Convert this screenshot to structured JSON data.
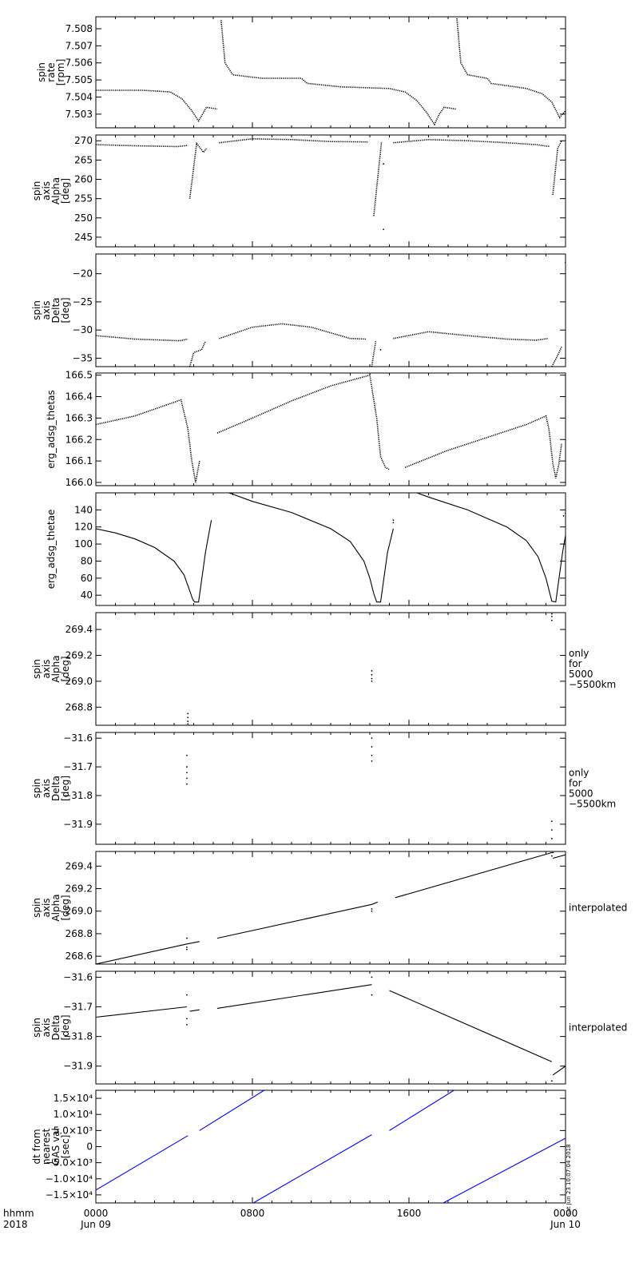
{
  "x_axis": {
    "label_line1": "hhmm",
    "label_line2": "2018",
    "ticks": [
      {
        "value": 0,
        "line1": "0000",
        "line2": "Jun 09"
      },
      {
        "value": 8,
        "line1": "0800",
        "line2": ""
      },
      {
        "value": 16,
        "line1": "1600",
        "line2": ""
      },
      {
        "value": 24,
        "line1": "0000",
        "line2": "Jun 10"
      }
    ],
    "range_hours": [
      0,
      24
    ]
  },
  "stamp": "Sat Jun 23 10:07:04 2018",
  "chart_data": [
    {
      "id": "spin-rate",
      "type": "scatter",
      "ylabel": [
        "spin",
        "rate",
        "[rpm]"
      ],
      "side_label": [],
      "ylim": [
        7.5022,
        7.5087
      ],
      "yticks": [
        7.503,
        7.504,
        7.505,
        7.506,
        7.507,
        7.508
      ],
      "ytick_labels": [
        "7.503",
        "7.504",
        "7.505",
        "7.506",
        "7.507",
        "7.508"
      ],
      "color": "#000000",
      "segments": [
        [
          [
            0,
            7.5044
          ],
          [
            2.4,
            7.5044
          ],
          [
            3.8,
            7.5043
          ],
          [
            4.4,
            7.5039
          ],
          [
            4.9,
            7.5032
          ],
          [
            5.25,
            7.5026
          ],
          [
            5.5,
            7.5031
          ],
          [
            5.65,
            7.5034
          ],
          [
            6.2,
            7.5033
          ]
        ],
        [
          [
            6.4,
            7.5085
          ],
          [
            6.6,
            7.506
          ],
          [
            7.0,
            7.5053
          ],
          [
            8.5,
            7.5051
          ],
          [
            10.5,
            7.5051
          ],
          [
            10.8,
            7.5048
          ],
          [
            12.5,
            7.5046
          ],
          [
            15.0,
            7.5045
          ],
          [
            15.8,
            7.5043
          ],
          [
            16.4,
            7.5038
          ],
          [
            16.9,
            7.5031
          ],
          [
            17.3,
            7.5024
          ],
          [
            17.55,
            7.503
          ],
          [
            17.8,
            7.5034
          ],
          [
            18.4,
            7.5033
          ]
        ],
        [
          [
            18.45,
            7.5086
          ],
          [
            18.65,
            7.506
          ],
          [
            19.0,
            7.5053
          ],
          [
            20.0,
            7.5051
          ],
          [
            20.2,
            7.5048
          ],
          [
            22.0,
            7.5045
          ],
          [
            22.8,
            7.5042
          ],
          [
            23.3,
            7.5037
          ],
          [
            23.7,
            7.5028
          ],
          [
            24.0,
            7.5032
          ]
        ]
      ]
    },
    {
      "id": "spin-axis-alpha",
      "type": "scatter",
      "ylabel": [
        "spin",
        "axis",
        "Alpha",
        "[deg]"
      ],
      "side_label": [],
      "ylim": [
        242.5,
        271.5
      ],
      "yticks": [
        245,
        250,
        255,
        260,
        265,
        270
      ],
      "ytick_labels": [
        "245",
        "250",
        "255",
        "260",
        "265",
        "270"
      ],
      "color": "#000000",
      "segments": [
        [
          [
            0,
            269.0
          ],
          [
            2.0,
            268.7
          ],
          [
            4.2,
            268.5
          ],
          [
            4.7,
            268.8
          ]
        ],
        [
          [
            4.8,
            255.0
          ],
          [
            5.15,
            269.3
          ],
          [
            5.5,
            267.0
          ],
          [
            5.65,
            268.0
          ]
        ],
        [
          [
            6.3,
            269.5
          ],
          [
            8.0,
            270.5
          ],
          [
            10.0,
            270.3
          ],
          [
            12.0,
            269.8
          ],
          [
            13.9,
            269.7
          ]
        ],
        [
          [
            14.2,
            250.5
          ],
          [
            14.6,
            269.8
          ]
        ],
        [
          [
            15.2,
            269.5
          ],
          [
            17.0,
            270.3
          ],
          [
            19.0,
            270.0
          ],
          [
            21.0,
            269.5
          ],
          [
            22.5,
            269.0
          ],
          [
            23.2,
            268.5
          ]
        ],
        [
          [
            23.35,
            256.0
          ],
          [
            23.6,
            268.0
          ],
          [
            23.8,
            270.0
          ]
        ]
      ],
      "scatter": [
        [
          14.7,
          247.0
        ],
        [
          14.7,
          264.0
        ],
        [
          24.0,
          245.0
        ]
      ]
    },
    {
      "id": "spin-axis-delta",
      "type": "scatter",
      "ylabel": [
        "spin",
        "axis",
        "Delta",
        "[deg]"
      ],
      "side_label": [],
      "ylim": [
        -36.5,
        -16.5
      ],
      "yticks": [
        -35,
        -30,
        -25,
        -20
      ],
      "ytick_labels": [
        "−35",
        "−30",
        "−25",
        "−20"
      ],
      "color": "#000000",
      "segments": [
        [
          [
            0,
            -31.0
          ],
          [
            2.0,
            -31.6
          ],
          [
            4.3,
            -31.9
          ],
          [
            4.7,
            -31.6
          ]
        ],
        [
          [
            4.8,
            -36.5
          ],
          [
            5.0,
            -34.0
          ],
          [
            5.4,
            -33.5
          ],
          [
            5.6,
            -32.0
          ]
        ],
        [
          [
            6.3,
            -31.5
          ],
          [
            8.0,
            -29.5
          ],
          [
            9.5,
            -28.9
          ],
          [
            11.0,
            -29.5
          ],
          [
            13.0,
            -31.5
          ],
          [
            13.8,
            -31.6
          ]
        ],
        [
          [
            14.1,
            -36.5
          ],
          [
            14.3,
            -32.0
          ]
        ],
        [
          [
            15.2,
            -31.5
          ],
          [
            17.0,
            -30.3
          ],
          [
            19.0,
            -31.0
          ],
          [
            21.0,
            -31.6
          ],
          [
            22.5,
            -31.8
          ],
          [
            23.1,
            -31.5
          ]
        ],
        [
          [
            23.3,
            -36.5
          ],
          [
            23.6,
            -34.5
          ],
          [
            23.8,
            -33.0
          ]
        ]
      ],
      "scatter": [
        [
          14.55,
          -33.5
        ],
        [
          24.0,
          -18.0
        ],
        [
          24.0,
          -25.0
        ]
      ]
    },
    {
      "id": "erg-adsg-thetas",
      "type": "scatter",
      "ylabel": [
        "erg_adsg_thetas"
      ],
      "side_label": [],
      "ylim": [
        165.985,
        166.51
      ],
      "yticks": [
        166.0,
        166.1,
        166.2,
        166.3,
        166.4,
        166.5
      ],
      "ytick_labels": [
        "166.0",
        "166.1",
        "166.2",
        "166.3",
        "166.4",
        "166.5"
      ],
      "color": "#000000",
      "segments": [
        [
          [
            0,
            166.27
          ],
          [
            2.0,
            166.31
          ],
          [
            4.35,
            166.385
          ],
          [
            4.7,
            166.25
          ],
          [
            4.9,
            166.1
          ],
          [
            5.1,
            166.0
          ],
          [
            5.3,
            166.1
          ]
        ],
        [
          [
            6.2,
            166.23
          ],
          [
            8.0,
            166.3
          ],
          [
            10.0,
            166.38
          ],
          [
            12.0,
            166.45
          ],
          [
            14.0,
            166.5
          ],
          [
            14.35,
            166.3
          ],
          [
            14.55,
            166.12
          ],
          [
            14.8,
            166.07
          ],
          [
            15.0,
            166.06
          ]
        ],
        [
          [
            15.8,
            166.07
          ],
          [
            18.0,
            166.15
          ],
          [
            20.0,
            166.21
          ],
          [
            22.0,
            166.27
          ],
          [
            23.0,
            166.31
          ],
          [
            23.15,
            166.25
          ],
          [
            23.35,
            166.09
          ],
          [
            23.5,
            166.02
          ],
          [
            23.65,
            166.08
          ],
          [
            23.8,
            166.18
          ]
        ]
      ]
    },
    {
      "id": "erg-adsg-thetae",
      "type": "line",
      "ylabel": [
        "erg_adsg_thetae"
      ],
      "side_label": [],
      "ylim": [
        28,
        160
      ],
      "yticks": [
        40,
        60,
        80,
        100,
        120,
        140
      ],
      "ytick_labels": [
        "40",
        "60",
        "80",
        "100",
        "120",
        "140"
      ],
      "color": "#000000",
      "segments": [
        [
          [
            0,
            118
          ],
          [
            1.0,
            113
          ],
          [
            2.0,
            106
          ],
          [
            3.0,
            96
          ],
          [
            4.0,
            80
          ],
          [
            4.5,
            64
          ],
          [
            4.8,
            45
          ],
          [
            4.95,
            35
          ],
          [
            5.05,
            32
          ],
          [
            5.25,
            32
          ],
          [
            5.6,
            90
          ],
          [
            5.9,
            128
          ]
        ],
        [
          [
            6.8,
            160
          ],
          [
            8.0,
            150
          ],
          [
            10.0,
            137
          ],
          [
            12.0,
            118
          ],
          [
            13.0,
            103
          ],
          [
            13.7,
            80
          ],
          [
            14.0,
            60
          ],
          [
            14.2,
            42
          ],
          [
            14.35,
            32
          ],
          [
            14.55,
            32
          ],
          [
            14.9,
            90
          ],
          [
            15.2,
            118
          ]
        ],
        [
          [
            16.4,
            160
          ],
          [
            17.0,
            155
          ],
          [
            19.0,
            140
          ],
          [
            21.0,
            120
          ],
          [
            22.0,
            104
          ],
          [
            22.6,
            85
          ],
          [
            23.0,
            60
          ],
          [
            23.2,
            42
          ],
          [
            23.3,
            33
          ],
          [
            23.5,
            32
          ],
          [
            23.85,
            90
          ],
          [
            24.0,
            110
          ]
        ]
      ],
      "scatter": [
        [
          15.2,
          128
        ],
        [
          15.2,
          125
        ],
        [
          24.0,
          136
        ],
        [
          23.9,
          133
        ]
      ]
    },
    {
      "id": "spin-axis-alpha-5000",
      "type": "scatter",
      "ylabel": [
        "spin",
        "axis",
        "Alpha",
        "[deg]"
      ],
      "side_label": [
        "only",
        "for",
        "5000",
        "−5500km"
      ],
      "ylim": [
        268.66,
        269.53
      ],
      "yticks": [
        268.8,
        269.0,
        269.2,
        269.4
      ],
      "ytick_labels": [
        "268.8",
        "269.0",
        "269.2",
        "269.4"
      ],
      "color": "#000000",
      "segments": [],
      "scatter": [
        [
          4.7,
          268.75
        ],
        [
          4.7,
          268.72
        ],
        [
          4.7,
          268.69
        ],
        [
          4.7,
          268.67
        ],
        [
          14.1,
          269.08
        ],
        [
          14.1,
          269.05
        ],
        [
          14.1,
          269.02
        ],
        [
          14.1,
          269.0
        ],
        [
          23.3,
          269.52
        ],
        [
          23.3,
          269.5
        ],
        [
          23.3,
          269.47
        ]
      ]
    },
    {
      "id": "spin-axis-delta-5000",
      "type": "scatter",
      "ylabel": [
        "spin",
        "axis",
        "Delta",
        "[deg]"
      ],
      "side_label": [
        "only",
        "for",
        "5000",
        "−5500km"
      ],
      "ylim": [
        -31.97,
        -31.58
      ],
      "yticks": [
        -31.9,
        -31.8,
        -31.7,
        -31.6
      ],
      "ytick_labels": [
        "−31.9",
        "−31.8",
        "−31.7",
        "−31.6"
      ],
      "color": "#000000",
      "segments": [],
      "scatter": [
        [
          4.65,
          -31.66
        ],
        [
          4.65,
          -31.7
        ],
        [
          4.65,
          -31.72
        ],
        [
          4.65,
          -31.74
        ],
        [
          4.65,
          -31.76
        ],
        [
          14.1,
          -31.6
        ],
        [
          14.1,
          -31.63
        ],
        [
          14.1,
          -31.66
        ],
        [
          14.1,
          -31.68
        ],
        [
          23.3,
          -31.89
        ],
        [
          23.3,
          -31.92
        ],
        [
          23.3,
          -31.95
        ]
      ]
    },
    {
      "id": "spin-axis-alpha-interp",
      "type": "line",
      "ylabel": [
        "spin",
        "axis",
        "Alpha",
        "[deg]"
      ],
      "side_label": [
        "interpolated"
      ],
      "ylim": [
        268.53,
        269.53
      ],
      "yticks": [
        268.6,
        268.8,
        269.0,
        269.2,
        269.4
      ],
      "ytick_labels": [
        "268.6",
        "268.8",
        "269.0",
        "269.2",
        "269.4"
      ],
      "color": "#000000",
      "segments": [
        [
          [
            0,
            268.53
          ],
          [
            4.7,
            268.71
          ],
          [
            5.3,
            268.73
          ]
        ],
        [
          [
            6.2,
            268.76
          ],
          [
            14.1,
            269.06
          ],
          [
            14.4,
            269.08
          ]
        ],
        [
          [
            15.3,
            269.12
          ],
          [
            23.3,
            269.52
          ],
          [
            23.4,
            269.52
          ]
        ],
        [
          [
            23.35,
            269.47
          ],
          [
            24.0,
            269.5
          ]
        ]
      ],
      "scatter": [
        [
          4.65,
          268.76
        ],
        [
          4.65,
          268.68
        ],
        [
          4.65,
          268.66
        ],
        [
          14.1,
          269.0
        ],
        [
          14.1,
          269.02
        ],
        [
          23.3,
          269.49
        ]
      ]
    },
    {
      "id": "spin-axis-delta-interp",
      "type": "line",
      "ylabel": [
        "spin",
        "axis",
        "Delta",
        "[deg]"
      ],
      "side_label": [
        "interpolated"
      ],
      "ylim": [
        -31.96,
        -31.58
      ],
      "yticks": [
        -31.9,
        -31.8,
        -31.7,
        -31.6
      ],
      "ytick_labels": [
        "−31.9",
        "−31.8",
        "−31.7",
        "−31.6"
      ],
      "color": "#000000",
      "segments": [
        [
          [
            0,
            -31.735
          ],
          [
            4.65,
            -31.7
          ]
        ],
        [
          [
            4.8,
            -31.715
          ],
          [
            5.3,
            -31.71
          ]
        ],
        [
          [
            6.2,
            -31.705
          ],
          [
            14.1,
            -31.625
          ]
        ],
        [
          [
            15.0,
            -31.645
          ],
          [
            23.3,
            -31.885
          ]
        ],
        [
          [
            23.35,
            -31.93
          ],
          [
            24.0,
            -31.9
          ]
        ]
      ],
      "scatter": [
        [
          4.65,
          -31.66
        ],
        [
          4.65,
          -31.74
        ],
        [
          4.65,
          -31.76
        ],
        [
          14.1,
          -31.6
        ],
        [
          14.1,
          -31.66
        ],
        [
          23.3,
          -31.95
        ]
      ]
    },
    {
      "id": "dt-from-nearest",
      "type": "line",
      "ylabel": [
        "dt from",
        "nearest",
        "GAS val",
        "[sec]"
      ],
      "side_label": [],
      "ylim": [
        -17500,
        17500
      ],
      "yticks": [
        -15000,
        -10000,
        -5000,
        0,
        5000,
        10000,
        15000
      ],
      "ytick_labels": [
        "−1.5×10⁴",
        "−1.0×10⁴",
        "−5.0×10³",
        "0",
        "5.0×10³",
        "1.0×10⁴",
        "1.5×10⁴"
      ],
      "color": "#0000ff",
      "segments": [
        [
          [
            0,
            -13500
          ],
          [
            4.7,
            3400
          ]
        ],
        [
          [
            5.3,
            5000
          ],
          [
            8.6,
            17500
          ]
        ],
        [
          [
            8.05,
            -17500
          ],
          [
            14.1,
            3700
          ]
        ],
        [
          [
            15.0,
            5000
          ],
          [
            18.3,
            17500
          ]
        ],
        [
          [
            17.75,
            -17500
          ],
          [
            24.0,
            2600
          ]
        ]
      ]
    }
  ]
}
